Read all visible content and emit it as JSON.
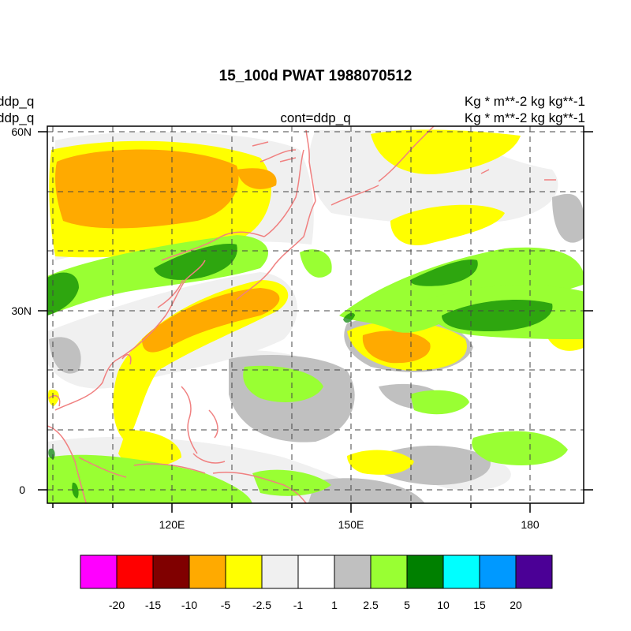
{
  "title": "15_100d PWAT  1988070512",
  "left_labels": [
    "ddp_q",
    "ddp_q"
  ],
  "center_label": "cont=ddp_q",
  "right_labels": [
    "Kg  * m**-2 kg kg**-1",
    "Kg  * m**-2 kg kg**-1"
  ],
  "lat_ticks": [
    {
      "value": 60,
      "label": "60N"
    },
    {
      "value": 30,
      "label": "30N"
    },
    {
      "value": 0,
      "label": "0"
    }
  ],
  "lon_ticks": [
    {
      "value": 120,
      "label": "120E"
    },
    {
      "value": 150,
      "label": "150E"
    },
    {
      "value": 180,
      "label": "180"
    }
  ],
  "map_extent": {
    "lon_min": 100,
    "lon_max": 187,
    "lat_min": -2,
    "lat_max": 62
  },
  "colorbar": {
    "colors": [
      "#ff00ff",
      "#ff0000",
      "#800000",
      "#ffaa00",
      "#ffff00",
      "#f0f0f0",
      "#ffffff",
      "#c0c0c0",
      "#99ff33",
      "#008000",
      "#00ffff",
      "#0099ff",
      "#4b0096"
    ],
    "labels": [
      "-20",
      "-15",
      "-10",
      "-5",
      "-2.5",
      "-1",
      "1",
      "2.5",
      "5",
      "10",
      "15",
      "20"
    ]
  },
  "coast_color": "#f08080"
}
